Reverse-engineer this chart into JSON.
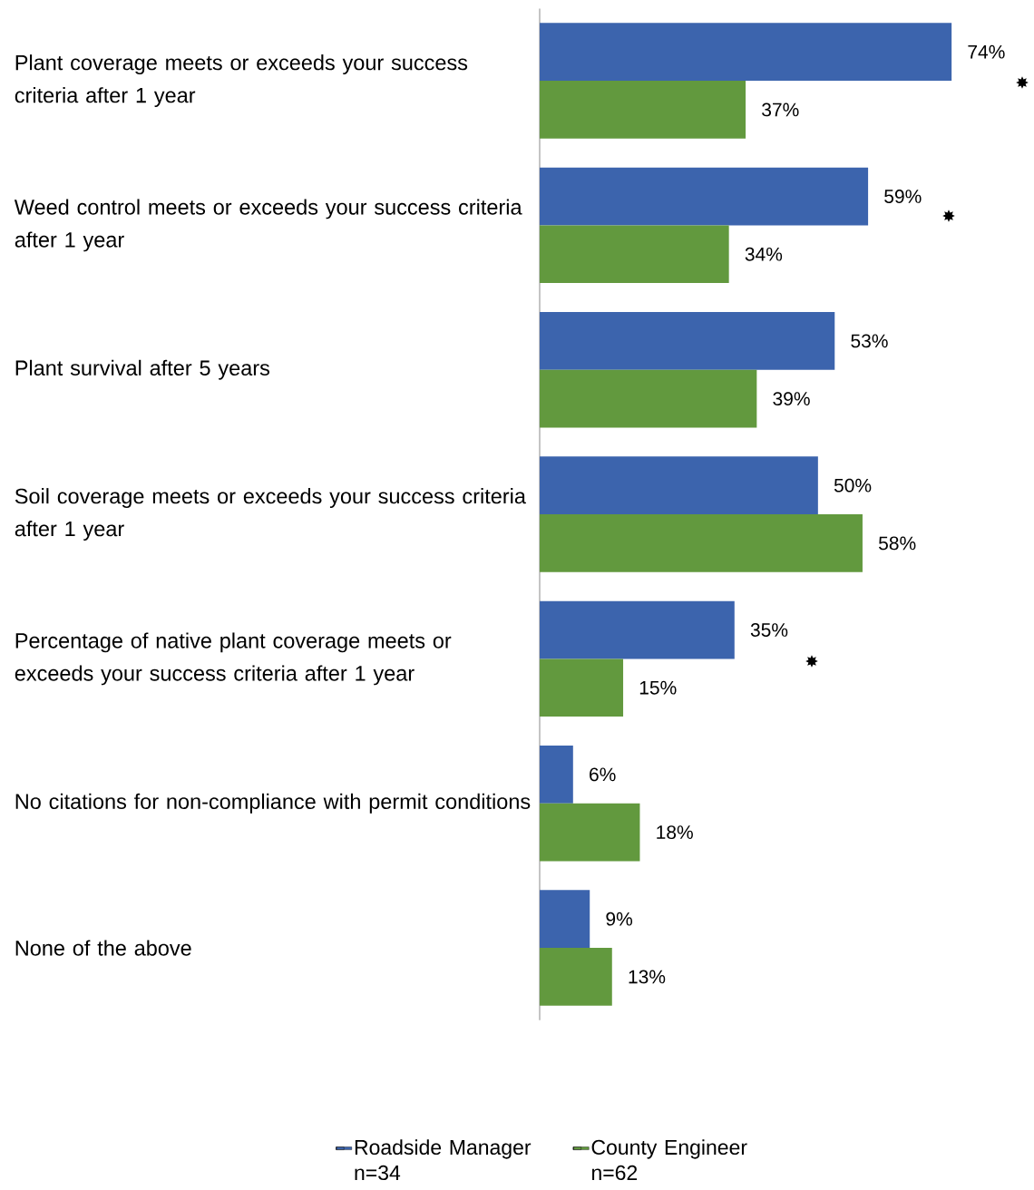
{
  "chart_data": {
    "type": "bar",
    "orientation": "horizontal",
    "legend": "bottom",
    "categories": [
      "Plant coverage meets or exceeds your success criteria after 1 year",
      "Weed control meets or exceeds your success criteria after 1 year",
      "Plant survival after 5 years",
      "Soil coverage meets or exceeds your success criteria after 1 year",
      "Percentage of native plant coverage meets or exceeds your success criteria after 1 year",
      "No citations for non-compliance with permit conditions",
      "None of the above"
    ],
    "series": [
      {
        "name": "Roadside Manager n=34",
        "color": "#3c64ad",
        "values": [
          74,
          59,
          53,
          50,
          35,
          6,
          9
        ],
        "value_labels": [
          "74%",
          "59%",
          "53%",
          "50%",
          "35%",
          "6%",
          "9%"
        ]
      },
      {
        "name": "County Engineer n=62",
        "color": "#62993e",
        "values": [
          37,
          34,
          39,
          58,
          15,
          18,
          13
        ],
        "value_labels": [
          "37%",
          "34%",
          "39%",
          "58%",
          "15%",
          "18%",
          "13%"
        ]
      }
    ],
    "annotations": [
      "✸",
      "✸",
      "✸"
    ]
  }
}
